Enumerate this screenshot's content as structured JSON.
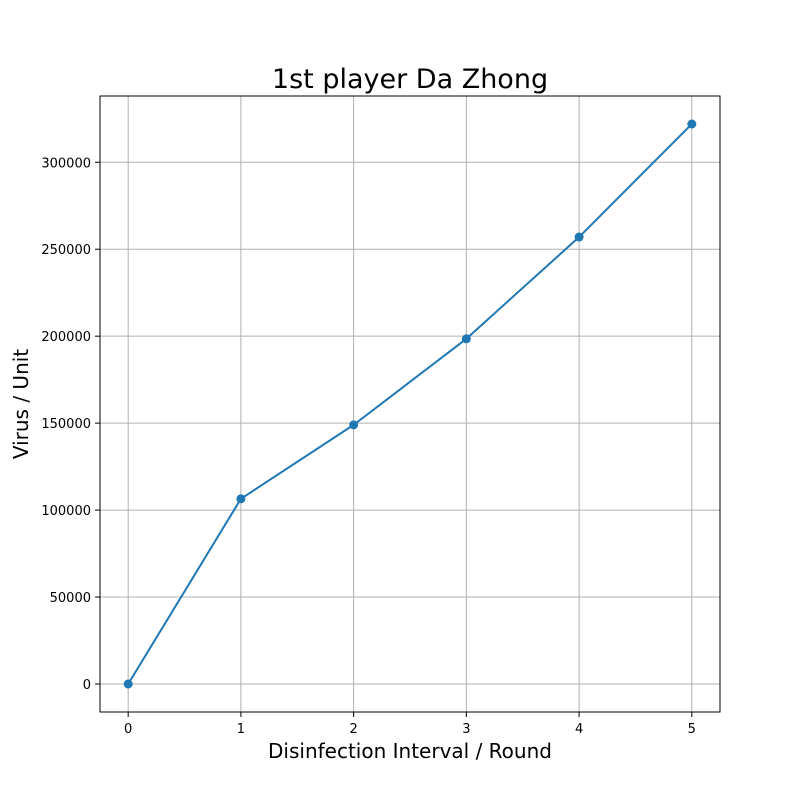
{
  "chart_data": {
    "type": "line",
    "title": "1st player Da Zhong",
    "xlabel": "Disinfection Interval / Round",
    "ylabel": "Virus / Unit",
    "x": [
      0,
      1,
      2,
      3,
      4,
      5
    ],
    "series": [
      {
        "values": [
          0,
          106500,
          149000,
          198500,
          257000,
          322000
        ],
        "color": "#1f77b4",
        "marker": "circle"
      }
    ],
    "xlim": [
      -0.25,
      5.25
    ],
    "ylim": [
      -16100,
      338100
    ],
    "x_ticks": [
      0,
      1,
      2,
      3,
      4,
      5
    ],
    "x_tick_labels": [
      "0",
      "1",
      "2",
      "3",
      "4",
      "5"
    ],
    "y_ticks": [
      0,
      50000,
      100000,
      150000,
      200000,
      250000,
      300000
    ],
    "y_tick_labels": [
      "0",
      "50000",
      "100000",
      "150000",
      "200000",
      "250000",
      "300000"
    ],
    "grid": true,
    "legend": "none",
    "grid_color": "#b0b0b0"
  }
}
